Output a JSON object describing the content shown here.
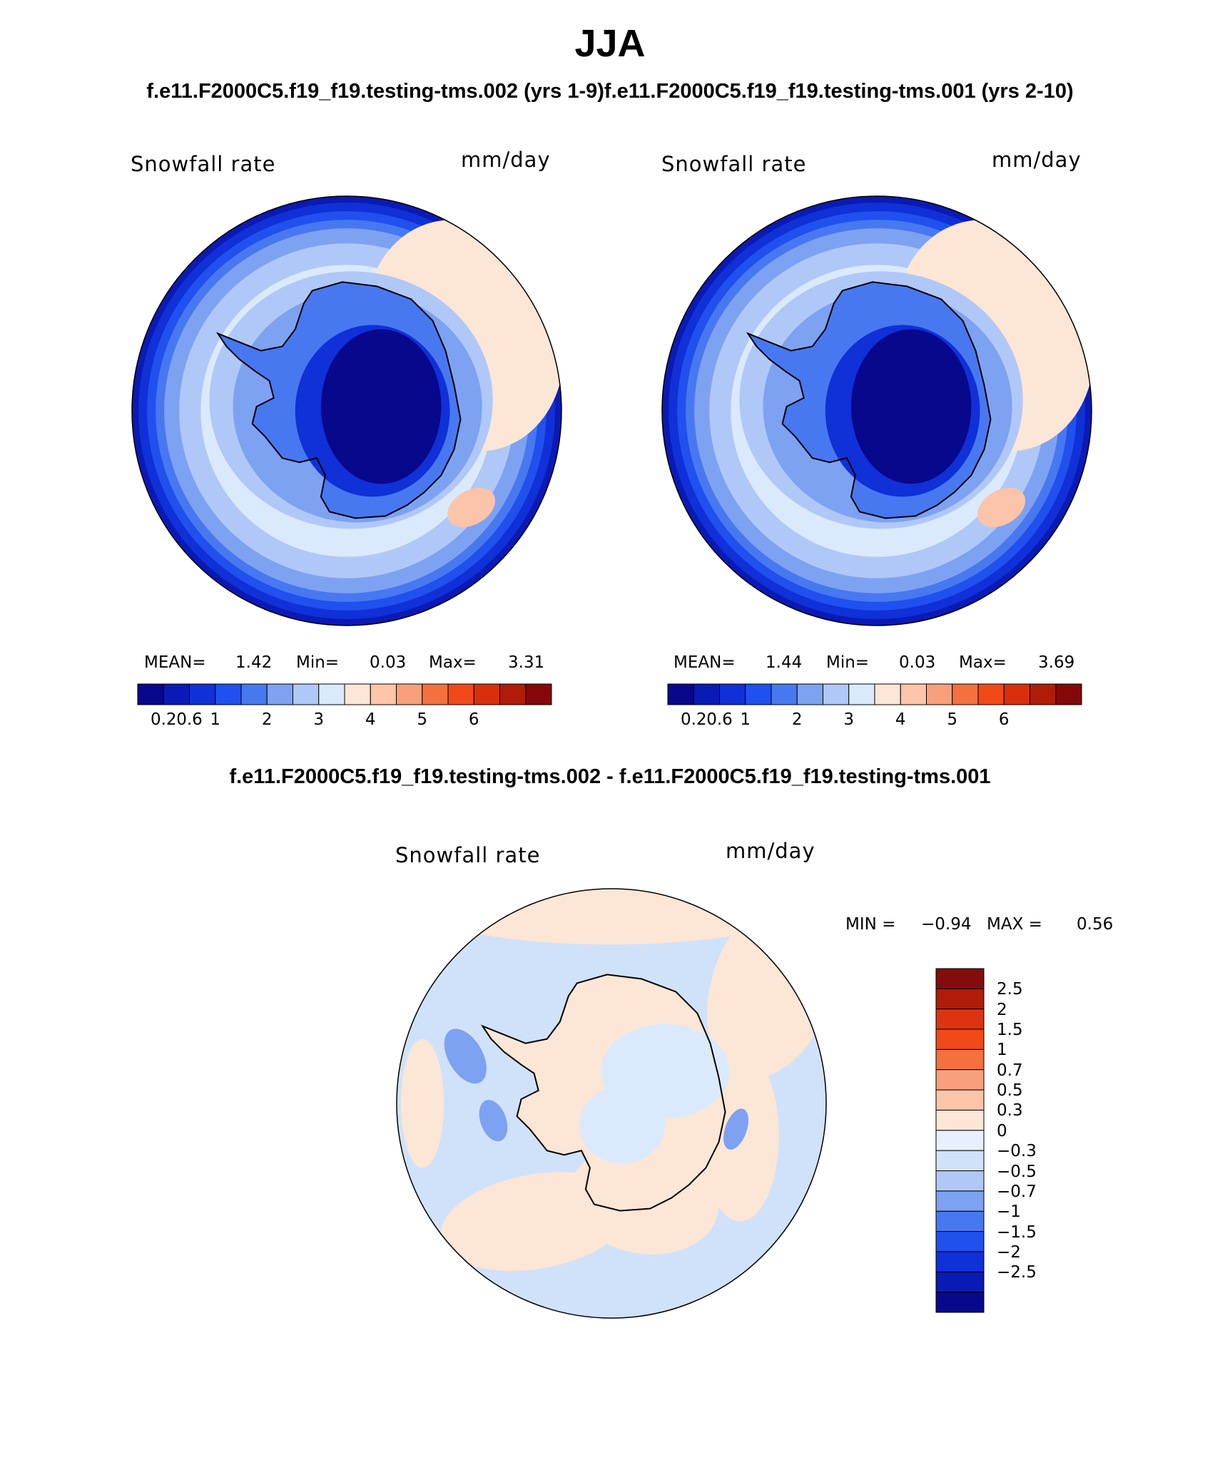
{
  "title": "JJA",
  "subtitle_top": "f.e11.F2000C5.f19_f19.testing-tms.002 (yrs 1-9)f.e11.F2000C5.f19_f19.testing-tms.001 (yrs 2-10)",
  "subtitle_diff": "f.e11.F2000C5.f19_f19.testing-tms.002 - f.e11.F2000C5.f19_f19.testing-tms.001",
  "panels": [
    {
      "variable": "Snowfall rate",
      "units": "mm/day",
      "mean_label": "MEAN=",
      "mean": "1.42",
      "min_label": "Min=",
      "min": "0.03",
      "max_label": "Max=",
      "max": "3.31"
    },
    {
      "variable": "Snowfall rate",
      "units": "mm/day",
      "mean_label": "MEAN=",
      "mean": "1.44",
      "min_label": "Min=",
      "min": "0.03",
      "max_label": "Max=",
      "max": "3.69"
    }
  ],
  "diff_panel": {
    "variable": "Snowfall rate",
    "units": "mm/day",
    "min_label": "MIN =",
    "min": "−0.94",
    "max_label": "MAX =",
    "max": "0.56"
  },
  "colorbar_abs": {
    "colors": [
      "#08088c",
      "#0a1ab4",
      "#1030d8",
      "#2050ee",
      "#4878f0",
      "#7ea2f2",
      "#b0c8f8",
      "#daeafc",
      "#fce6d6",
      "#fcc4a8",
      "#f8a07c",
      "#f4703e",
      "#f04a18",
      "#d8300c",
      "#b01c08",
      "#840808"
    ],
    "tick_labels": [
      "0.2",
      "0.6",
      "1",
      "2",
      "3",
      "4",
      "5",
      "6"
    ]
  },
  "colorbar_diff": {
    "colors": [
      "#850c0c",
      "#b01c08",
      "#dc3410",
      "#f04a18",
      "#f4703e",
      "#f8a07c",
      "#fcc4a8",
      "#fce6d6",
      "#e8f0fc",
      "#d0e2fa",
      "#b0c8f8",
      "#7ea2f2",
      "#4878f0",
      "#2050ee",
      "#1030d8",
      "#0a1ab4",
      "#08088c"
    ],
    "tick_labels": [
      "2.5",
      "2",
      "1.5",
      "1",
      "0.7",
      "0.5",
      "0.3",
      "0",
      "−0.3",
      "−0.5",
      "−0.7",
      "−1",
      "−1.5",
      "−2",
      "−2.5"
    ]
  },
  "map_colors": {
    "ocean_light": "#daeafc",
    "ocean_mid": "#b0c8f8",
    "ring_1": "#7ea2f2",
    "ring_2": "#4878f0",
    "ring_3": "#2050ee",
    "interior_dark": "#08088c",
    "interior_2": "#0a1ab4",
    "interior_3": "#1030d8",
    "warm_light": "#fce6d6",
    "warm_mid": "#fcc4a8",
    "diff_bg": "#d0e2fa",
    "coastline": "#000000"
  }
}
